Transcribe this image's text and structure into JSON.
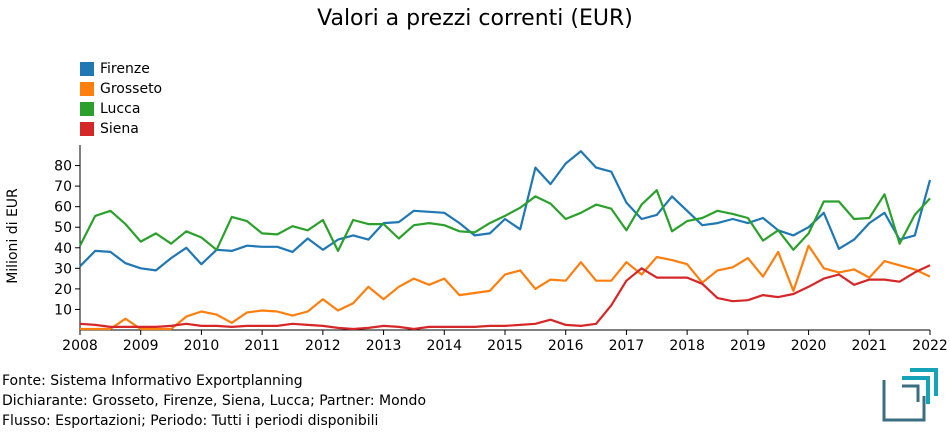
{
  "chart_data": {
    "type": "line",
    "title": "Valori a prezzi correnti (EUR)",
    "xlabel": "",
    "ylabel": "Milioni di EUR",
    "xlim": [
      2008,
      2022
    ],
    "ylim": [
      0,
      90
    ],
    "x_ticks": [
      "2008",
      "2009",
      "2010",
      "2011",
      "2012",
      "2013",
      "2014",
      "2015",
      "2016",
      "2017",
      "2018",
      "2019",
      "2020",
      "2021",
      "2022"
    ],
    "y_ticks": [
      "10",
      "20",
      "30",
      "40",
      "50",
      "60",
      "70",
      "80"
    ],
    "legend_position": "top-left",
    "grid": false,
    "x": [
      2008.0,
      2008.25,
      2008.5,
      2008.75,
      2009.0,
      2009.25,
      2009.5,
      2009.75,
      2010.0,
      2010.25,
      2010.5,
      2010.75,
      2011.0,
      2011.25,
      2011.5,
      2011.75,
      2012.0,
      2012.25,
      2012.5,
      2012.75,
      2013.0,
      2013.25,
      2013.5,
      2013.75,
      2014.0,
      2014.25,
      2014.5,
      2014.75,
      2015.0,
      2015.25,
      2015.5,
      2015.75,
      2016.0,
      2016.25,
      2016.5,
      2016.75,
      2017.0,
      2017.25,
      2017.5,
      2017.75,
      2018.0,
      2018.25,
      2018.5,
      2018.75,
      2019.0,
      2019.25,
      2019.5,
      2019.75,
      2020.0,
      2020.25,
      2020.5,
      2020.75,
      2021.0,
      2021.25,
      2021.5,
      2021.75,
      2022.0
    ],
    "series": [
      {
        "name": "Firenze",
        "color": "#1f77b4",
        "values": [
          31,
          38.5,
          38,
          32.5,
          30,
          29,
          35,
          40,
          32,
          39,
          38.5,
          41,
          40.5,
          40.5,
          38,
          44.5,
          39,
          44,
          46,
          44,
          52,
          52.5,
          58,
          57.5,
          57,
          52,
          46,
          47,
          54,
          49,
          79,
          71,
          81,
          87,
          79,
          77,
          62,
          54,
          56,
          65,
          58,
          51,
          52,
          54,
          52,
          54.5,
          48.5,
          46,
          50,
          57,
          39.5,
          44,
          52,
          57,
          44,
          46,
          73
        ]
      },
      {
        "name": "Grosseto",
        "color": "#ff7f0e",
        "values": [
          0.5,
          0.5,
          0.5,
          5.5,
          0.5,
          0.5,
          0.5,
          6.5,
          9,
          7.5,
          3.5,
          8.5,
          9.5,
          9,
          7,
          9,
          15,
          9.5,
          13,
          21,
          15,
          21,
          25,
          22,
          25,
          17,
          18,
          19,
          27,
          29,
          20,
          24.5,
          24,
          33,
          24,
          24,
          33,
          27,
          35.5,
          34,
          32,
          23,
          29,
          30.5,
          35,
          26,
          38,
          19,
          41,
          30,
          28,
          29.5,
          25.5,
          33.5,
          31.5,
          29.5,
          26
        ]
      },
      {
        "name": "Lucca",
        "color": "#2ca02c",
        "values": [
          41,
          55.5,
          58,
          51.5,
          43,
          47,
          42,
          48,
          45,
          39,
          55,
          53,
          47,
          46.5,
          50.5,
          48.5,
          53.5,
          38.5,
          53.5,
          51.5,
          51.5,
          44.5,
          51,
          52,
          51,
          48,
          47.5,
          52,
          55.5,
          59.5,
          65,
          61.5,
          54,
          57,
          61,
          59,
          48.5,
          61,
          68,
          48,
          53,
          54.5,
          58,
          56.5,
          54.5,
          43.5,
          48.5,
          39,
          47,
          62.5,
          62.5,
          54,
          54.5,
          66,
          42,
          56,
          64
        ]
      },
      {
        "name": "Siena",
        "color": "#d62728",
        "values": [
          3,
          2.5,
          1.5,
          1.5,
          1.5,
          1.5,
          2,
          3,
          2,
          2,
          1.5,
          2,
          2,
          2,
          3,
          2.5,
          2,
          1,
          0.5,
          1,
          2,
          1.5,
          0.5,
          1.5,
          1.5,
          1.5,
          1.5,
          2,
          2,
          2.5,
          3,
          5,
          2.5,
          2,
          3,
          12,
          24,
          30,
          25.5,
          25.5,
          25.5,
          22.5,
          15.5,
          14,
          14.5,
          17,
          16,
          17.5,
          21,
          25,
          27,
          22,
          24.5,
          24.5,
          23.5,
          28,
          31.5
        ]
      }
    ]
  },
  "footer": {
    "line1": "Fonte: Sistema Informativo Exportplanning",
    "line2": "Dichiarante: Grosseto, Firenze, Siena, Lucca; Partner: Mondo",
    "line3": "Flusso: Esportazioni; Periodo: Tutti i periodi disponibili"
  },
  "logo": {
    "icon": "exportplanning-logo-icon",
    "color_dark": "#3b6e80",
    "color_accent": "#16a3b8"
  }
}
